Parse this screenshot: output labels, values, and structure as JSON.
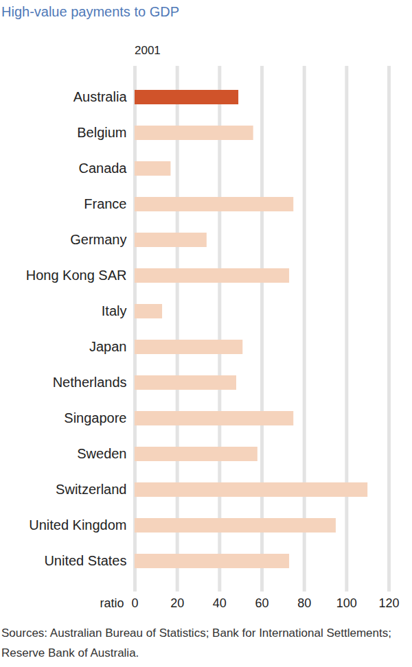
{
  "chart_data": {
    "type": "bar",
    "orientation": "horizontal",
    "title": "High-value payments to GDP",
    "subtitle": "2001",
    "caption": "Sources: Australian Bureau of Statistics; Bank for International Settlements; Reserve Bank of Australia.",
    "categories": [
      "Australia",
      "Belgium",
      "Canada",
      "France",
      "Germany",
      "Hong Kong SAR",
      "Italy",
      "Japan",
      "Netherlands",
      "Singapore",
      "Sweden",
      "Switzerland",
      "United Kingdom",
      "United States"
    ],
    "values": [
      49,
      56,
      17,
      75,
      34,
      73,
      13,
      51,
      48,
      75,
      58,
      110,
      95,
      73
    ],
    "colors": [
      "#d0532a",
      "#f5d3bc",
      "#f5d3bc",
      "#f5d3bc",
      "#f5d3bc",
      "#f5d3bc",
      "#f5d3bc",
      "#f5d3bc",
      "#f5d3bc",
      "#f5d3bc",
      "#f5d3bc",
      "#f5d3bc",
      "#f5d3bc",
      "#f5d3bc"
    ],
    "xlabel": "ratio",
    "xlim": [
      0,
      120
    ],
    "xticks": [
      0,
      20,
      40,
      60,
      80,
      100,
      120
    ],
    "grid": true
  }
}
